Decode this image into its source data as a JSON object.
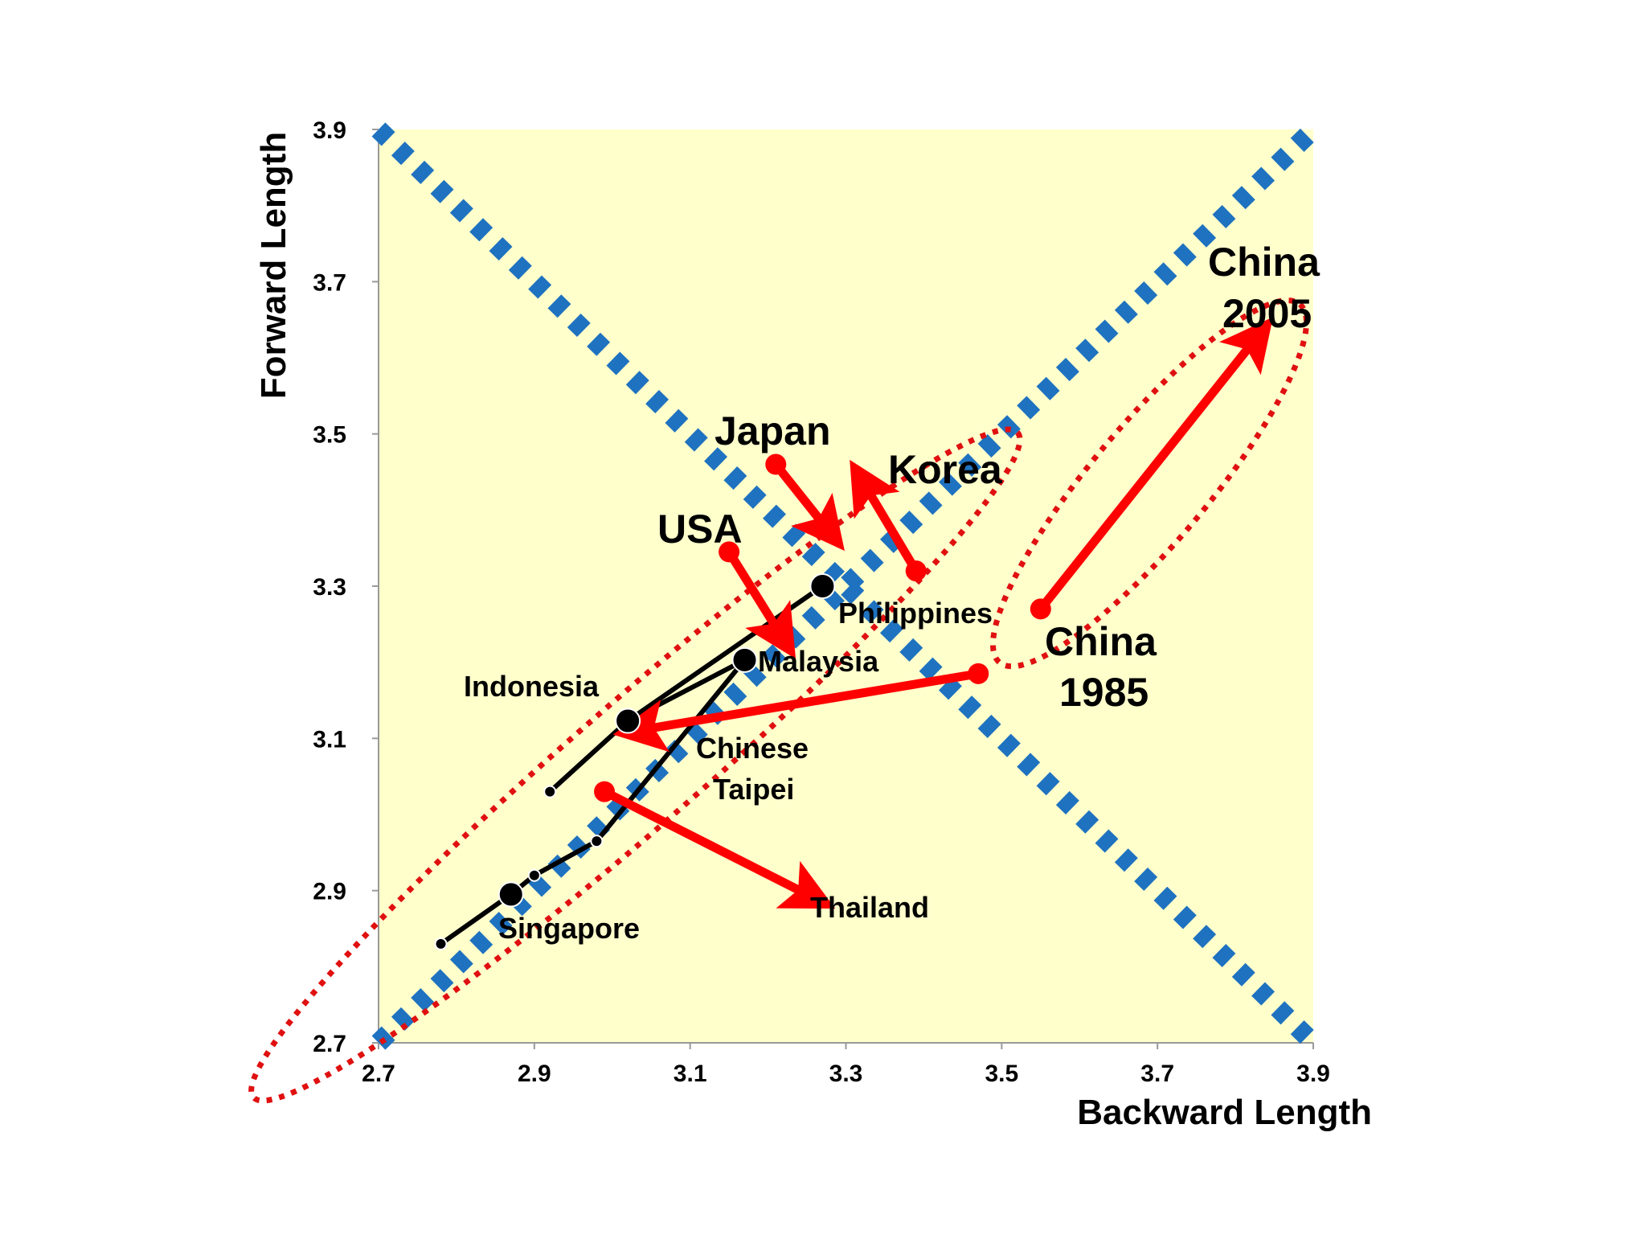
{
  "chart_data": {
    "type": "scatter",
    "xlabel": "Backward Length",
    "ylabel": "Forward Length",
    "xlim": [
      2.7,
      3.9
    ],
    "ylim": [
      2.7,
      3.9
    ],
    "x_ticks": [
      "2.7",
      "2.9",
      "3.1",
      "3.3",
      "3.5",
      "3.7",
      "3.9"
    ],
    "y_ticks": [
      "2.7",
      "2.9",
      "3.1",
      "3.3",
      "3.5",
      "3.7",
      "3.9"
    ],
    "grid": false,
    "background_color": "#ffffcc",
    "reference_lines": [
      {
        "from": [
          2.7,
          2.7
        ],
        "to": [
          3.9,
          3.9
        ],
        "style": "dotted",
        "color": "#1f72c0"
      },
      {
        "from": [
          2.7,
          3.9
        ],
        "to": [
          3.9,
          2.7
        ],
        "style": "dotted",
        "color": "#1f72c0"
      }
    ],
    "points": [
      {
        "label": "Singapore",
        "x": 2.87,
        "y": 2.895,
        "size": "large"
      },
      {
        "label": "Indonesia",
        "x": 3.02,
        "y": 3.123,
        "size": "large"
      },
      {
        "label": "Malaysia",
        "x": 3.17,
        "y": 3.203,
        "size": "large"
      },
      {
        "label": "Philippines",
        "x": 3.27,
        "y": 3.3,
        "size": "large"
      },
      {
        "label": "",
        "x": 2.78,
        "y": 2.83,
        "size": "small"
      },
      {
        "label": "",
        "x": 2.92,
        "y": 3.03,
        "size": "small"
      },
      {
        "label": "",
        "x": 2.9,
        "y": 2.92,
        "size": "small"
      },
      {
        "label": "",
        "x": 2.98,
        "y": 2.965,
        "size": "small"
      }
    ],
    "connectors": [
      [
        [
          2.78,
          2.83
        ],
        [
          2.87,
          2.895
        ],
        [
          2.9,
          2.92
        ],
        [
          2.98,
          2.965
        ]
      ],
      [
        [
          2.92,
          3.03
        ],
        [
          3.02,
          3.123
        ],
        [
          3.27,
          3.3
        ]
      ],
      [
        [
          3.02,
          3.123
        ],
        [
          3.17,
          3.203
        ]
      ],
      [
        [
          2.98,
          2.965
        ],
        [
          3.17,
          3.203
        ]
      ]
    ],
    "arrows": [
      {
        "label": "Japan",
        "from": [
          3.21,
          3.46
        ],
        "to": [
          3.28,
          3.37
        ]
      },
      {
        "label": "Korea",
        "from": [
          3.39,
          3.32
        ],
        "to": [
          3.32,
          3.44
        ]
      },
      {
        "label": "USA",
        "from": [
          3.15,
          3.345
        ],
        "to": [
          3.22,
          3.23
        ]
      },
      {
        "label": "Chinese Taipei",
        "from": [
          3.47,
          3.185
        ],
        "to": [
          3.03,
          3.11
        ]
      },
      {
        "label": "Thailand",
        "from": [
          2.99,
          3.03
        ],
        "to": [
          3.26,
          2.89
        ]
      },
      {
        "label": "China",
        "from": [
          3.55,
          3.27
        ],
        "to": [
          3.83,
          3.63
        ]
      }
    ],
    "groupings": [
      {
        "center": [
          3.03,
          3.065
        ],
        "rx_units": 0.65,
        "ry_units": 0.08,
        "angle_deg": 41
      },
      {
        "center": [
          3.69,
          3.435
        ],
        "rx_units": 0.3,
        "ry_units": 0.075,
        "angle_deg": 50
      }
    ],
    "annotations": {
      "japan": "Japan",
      "korea": "Korea",
      "usa": "USA",
      "malaysia": "Malaysia",
      "philippines": "Philippines",
      "indonesia": "Indonesia",
      "chinese_taipei_1": "Chinese",
      "chinese_taipei_2": "Taipei",
      "singapore": "Singapore",
      "thailand": "Thailand",
      "china_1985_1": "China",
      "china_1985_2": "1985",
      "china_2005_1": "China",
      "china_2005_2": "2005"
    },
    "colors": {
      "arrow": "#ff0000",
      "reference": "#1f72c0",
      "ellipse": "#e01010",
      "point": "#000000"
    }
  }
}
